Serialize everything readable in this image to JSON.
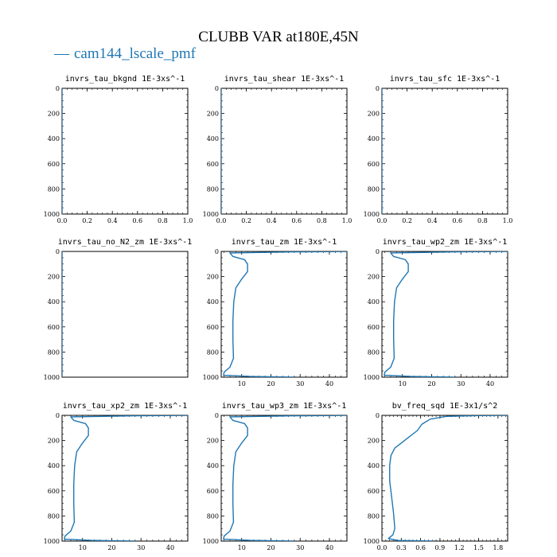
{
  "figure": {
    "title": "CLUBB VAR at180E,45N",
    "legend_label": "cam144_lscale_pmf",
    "line_color": "#1f77b4"
  },
  "chart_data": [
    {
      "type": "line",
      "title": "invrs_tau_bkgnd   1E-3xs^-1",
      "xlim": [
        0,
        1
      ],
      "ylim": [
        1000,
        0
      ],
      "xticks": [
        0.0,
        0.2,
        0.4,
        0.6,
        0.8,
        1.0
      ],
      "xticklabels": [
        "0.0",
        "0.2",
        "0.4",
        "0.6",
        "0.8",
        "1.0"
      ],
      "yticks": [
        0,
        200,
        400,
        600,
        800,
        1000
      ],
      "series": [
        {
          "points": [
            [
              0,
              0
            ],
            [
              0,
              1000
            ]
          ]
        }
      ]
    },
    {
      "type": "line",
      "title": "invrs_tau_shear   1E-3xs^-1",
      "xlim": [
        0,
        1
      ],
      "ylim": [
        1000,
        0
      ],
      "xticks": [
        0.0,
        0.2,
        0.4,
        0.6,
        0.8,
        1.0
      ],
      "xticklabels": [
        "0.0",
        "0.2",
        "0.4",
        "0.6",
        "0.8",
        "1.0"
      ],
      "yticks": [
        0,
        200,
        400,
        600,
        800,
        1000
      ],
      "series": [
        {
          "points": [
            [
              0,
              0
            ],
            [
              0,
              1000
            ]
          ]
        }
      ]
    },
    {
      "type": "line",
      "title": "invrs_tau_sfc   1E-3xs^-1",
      "xlim": [
        0,
        1
      ],
      "ylim": [
        1000,
        0
      ],
      "xticks": [
        0.0,
        0.2,
        0.4,
        0.6,
        0.8,
        1.0
      ],
      "xticklabels": [
        "0.0",
        "0.2",
        "0.4",
        "0.6",
        "0.8",
        "1.0"
      ],
      "yticks": [
        0,
        200,
        400,
        600,
        800,
        1000
      ],
      "series": [
        {
          "points": [
            [
              0,
              0
            ],
            [
              0,
              1000
            ]
          ]
        }
      ]
    },
    {
      "type": "line",
      "title": "invrs_tau_no_N2_zm   1E-3xs^-1",
      "xlim": [
        0,
        1
      ],
      "ylim": [
        1000,
        0
      ],
      "xticks": [],
      "xticklabels": [],
      "yticks": [
        0,
        200,
        400,
        600,
        800,
        1000
      ],
      "series": [
        {
          "points": [
            [
              0,
              0
            ],
            [
              0,
              1000
            ]
          ]
        }
      ]
    },
    {
      "type": "line",
      "title": "invrs_tau_zm   1E-3xs^-1",
      "xlim": [
        3,
        46
      ],
      "ylim": [
        1000,
        0
      ],
      "xticks": [
        10,
        20,
        30,
        40
      ],
      "xticklabels": [
        "10",
        "20",
        "30",
        "40"
      ],
      "yticks": [
        0,
        200,
        400,
        600,
        800,
        1000
      ],
      "series": [
        {
          "points": [
            [
              46,
              0
            ],
            [
              28,
              4
            ],
            [
              6,
              12
            ],
            [
              7,
              40
            ],
            [
              11,
              65
            ],
            [
              12,
              100
            ],
            [
              12,
              160
            ],
            [
              10,
              220
            ],
            [
              8,
              290
            ],
            [
              7.3,
              400
            ],
            [
              7,
              550
            ],
            [
              7,
              700
            ],
            [
              7.2,
              850
            ],
            [
              6,
              920
            ],
            [
              4,
              960
            ],
            [
              3.8,
              985
            ],
            [
              13,
              994
            ],
            [
              28,
              1000
            ]
          ]
        }
      ]
    },
    {
      "type": "line",
      "title": "invrs_tau_wp2_zm   1E-3xs^-1",
      "xlim": [
        3,
        46
      ],
      "ylim": [
        1000,
        0
      ],
      "xticks": [
        10,
        20,
        30,
        40
      ],
      "xticklabels": [
        "10",
        "20",
        "30",
        "40"
      ],
      "yticks": [
        0,
        200,
        400,
        600,
        800,
        1000
      ],
      "series": [
        {
          "points": [
            [
              46,
              0
            ],
            [
              28,
              4
            ],
            [
              6,
              12
            ],
            [
              7,
              40
            ],
            [
              11,
              65
            ],
            [
              12,
              100
            ],
            [
              12,
              160
            ],
            [
              10,
              220
            ],
            [
              8,
              290
            ],
            [
              7.3,
              400
            ],
            [
              7,
              550
            ],
            [
              7,
              700
            ],
            [
              7.2,
              850
            ],
            [
              6,
              920
            ],
            [
              4,
              960
            ],
            [
              3.8,
              985
            ],
            [
              13,
              994
            ],
            [
              28,
              1000
            ]
          ]
        }
      ]
    },
    {
      "type": "line",
      "title": "invrs_tau_xp2_zm   1E-3xs^-1",
      "xlim": [
        3,
        46
      ],
      "ylim": [
        1000,
        0
      ],
      "xticks": [
        10,
        20,
        30,
        40
      ],
      "xticklabels": [
        "10",
        "20",
        "30",
        "40"
      ],
      "yticks": [
        0,
        200,
        400,
        600,
        800,
        1000
      ],
      "series": [
        {
          "points": [
            [
              46,
              0
            ],
            [
              28,
              4
            ],
            [
              6,
              12
            ],
            [
              7,
              40
            ],
            [
              11,
              65
            ],
            [
              12,
              100
            ],
            [
              12,
              160
            ],
            [
              10,
              220
            ],
            [
              8,
              290
            ],
            [
              7.3,
              400
            ],
            [
              7,
              550
            ],
            [
              7,
              700
            ],
            [
              7.2,
              850
            ],
            [
              6,
              920
            ],
            [
              4,
              960
            ],
            [
              3.8,
              985
            ],
            [
              13,
              994
            ],
            [
              28,
              1000
            ]
          ]
        }
      ]
    },
    {
      "type": "line",
      "title": "invrs_tau_wp3_zm   1E-3xs^-1",
      "xlim": [
        3,
        46
      ],
      "ylim": [
        1000,
        0
      ],
      "xticks": [
        10,
        20,
        30,
        40
      ],
      "xticklabels": [
        "10",
        "20",
        "30",
        "40"
      ],
      "yticks": [
        0,
        200,
        400,
        600,
        800,
        1000
      ],
      "series": [
        {
          "points": [
            [
              46,
              0
            ],
            [
              28,
              4
            ],
            [
              6,
              12
            ],
            [
              7,
              40
            ],
            [
              11,
              65
            ],
            [
              12,
              100
            ],
            [
              12,
              160
            ],
            [
              10,
              220
            ],
            [
              8,
              290
            ],
            [
              7.3,
              400
            ],
            [
              7,
              550
            ],
            [
              7,
              700
            ],
            [
              7.2,
              850
            ],
            [
              6,
              920
            ],
            [
              4,
              960
            ],
            [
              3.8,
              985
            ],
            [
              13,
              994
            ],
            [
              28,
              1000
            ]
          ]
        }
      ]
    },
    {
      "type": "line",
      "title": "bv_freq_sqd   1E-3x1/s^2",
      "xlim": [
        0,
        1.95
      ],
      "ylim": [
        1000,
        0
      ],
      "xticks": [
        0.0,
        0.3,
        0.6,
        0.9,
        1.2,
        1.5,
        1.8
      ],
      "xticklabels": [
        "0.0",
        "0.3",
        "0.6",
        "0.9",
        "1.2",
        "1.5",
        "1.8"
      ],
      "yticks": [
        0,
        200,
        400,
        600,
        800,
        1000
      ],
      "series": [
        {
          "points": [
            [
              1.95,
              0
            ],
            [
              1.5,
              2
            ],
            [
              1.0,
              8
            ],
            [
              0.75,
              30
            ],
            [
              0.62,
              70
            ],
            [
              0.55,
              120
            ],
            [
              0.4,
              180
            ],
            [
              0.3,
              220
            ],
            [
              0.2,
              260
            ],
            [
              0.14,
              320
            ],
            [
              0.12,
              400
            ],
            [
              0.12,
              520
            ],
            [
              0.15,
              650
            ],
            [
              0.18,
              780
            ],
            [
              0.2,
              900
            ],
            [
              0.17,
              950
            ],
            [
              0.1,
              980
            ],
            [
              0.25,
              995
            ],
            [
              0.8,
              1000
            ]
          ]
        }
      ]
    }
  ]
}
